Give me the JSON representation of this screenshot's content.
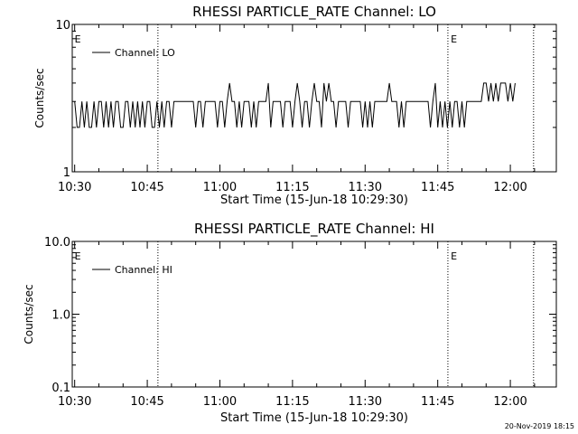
{
  "chart_data": [
    {
      "type": "line",
      "title": "RHESSI PARTICLE_RATE Channel: LO",
      "xlabel": "Start Time (15-Jun-18 10:29:30)",
      "ylabel": "Counts/sec",
      "yscale": "log",
      "ylim": [
        1,
        10
      ],
      "ytick_labels": [
        "1",
        "10"
      ],
      "xtick_labels": [
        "10:30",
        "10:45",
        "11:00",
        "11:15",
        "11:30",
        "11:45",
        "12:00"
      ],
      "xtick_minutes": [
        0.5,
        15.5,
        30.5,
        45.5,
        60.5,
        75.5,
        90.5
      ],
      "xlim_minutes": [
        0,
        100
      ],
      "legend_entry": "Channel: LO",
      "legend_placement": "top-left",
      "grid": false,
      "event_lines_minutes": [
        17.7,
        77.6,
        95.3
      ],
      "event_markers": [
        {
          "minute": 0.5,
          "label": "E"
        },
        {
          "minute": 78.2,
          "label": "E"
        }
      ],
      "series": [
        {
          "name": "Channel: LO",
          "x_start_minute": 0.5,
          "x_step_minutes": 0.5,
          "values": [
            3,
            2,
            2,
            3,
            2,
            3,
            2,
            2,
            3,
            2,
            3,
            3,
            2,
            3,
            2,
            3,
            2,
            3,
            3,
            2,
            2,
            3,
            3,
            2,
            3,
            2,
            3,
            2,
            3,
            2,
            3,
            3,
            2,
            2,
            3,
            2,
            3,
            2,
            3,
            3,
            2,
            3,
            3,
            3,
            3,
            3,
            3,
            3,
            3,
            3,
            2,
            3,
            3,
            2,
            3,
            3,
            3,
            3,
            3,
            2,
            3,
            3,
            2,
            3,
            4,
            3,
            3,
            2,
            3,
            2,
            3,
            3,
            3,
            2,
            3,
            2,
            3,
            3,
            3,
            3,
            4,
            2,
            3,
            3,
            3,
            3,
            2,
            3,
            3,
            3,
            2,
            3,
            4,
            3,
            2,
            3,
            3,
            2,
            3,
            4,
            3,
            3,
            2,
            4,
            3,
            4,
            3,
            3,
            2,
            3,
            3,
            3,
            3,
            2,
            3,
            3,
            3,
            3,
            3,
            2,
            3,
            2,
            3,
            2,
            3,
            3,
            3,
            3,
            3,
            3,
            4,
            3,
            3,
            3,
            2,
            3,
            2,
            3,
            3,
            3,
            3,
            3,
            3,
            3,
            3,
            3,
            3,
            2,
            3,
            4,
            2,
            3,
            2,
            3,
            2,
            3,
            2,
            3,
            3,
            2,
            3,
            2,
            3,
            3,
            3,
            3,
            3,
            3,
            3,
            4,
            4,
            3,
            4,
            3,
            4,
            3,
            4,
            4,
            4,
            3,
            4,
            3,
            4
          ]
        }
      ]
    },
    {
      "type": "line",
      "title": "RHESSI PARTICLE_RATE Channel: HI",
      "xlabel": "Start Time (15-Jun-18 10:29:30)",
      "ylabel": "Counts/sec",
      "yscale": "log",
      "ylim": [
        0.1,
        10
      ],
      "ytick_labels": [
        "0.1",
        "1.0",
        "10.0"
      ],
      "xtick_labels": [
        "10:30",
        "10:45",
        "11:00",
        "11:15",
        "11:30",
        "11:45",
        "12:00"
      ],
      "xtick_minutes": [
        0.5,
        15.5,
        30.5,
        45.5,
        60.5,
        75.5,
        90.5
      ],
      "xlim_minutes": [
        0,
        100
      ],
      "legend_entry": "Channel: HI",
      "legend_placement": "top-left",
      "grid": false,
      "event_lines_minutes": [
        17.7,
        77.6,
        95.3
      ],
      "event_markers": [
        {
          "minute": 0.5,
          "label": "E"
        },
        {
          "minute": 78.2,
          "label": "E"
        }
      ],
      "series": [
        {
          "name": "Channel: HI",
          "values": []
        }
      ]
    }
  ],
  "footer": {
    "timestamp": "20-Nov-2019 18:15"
  }
}
